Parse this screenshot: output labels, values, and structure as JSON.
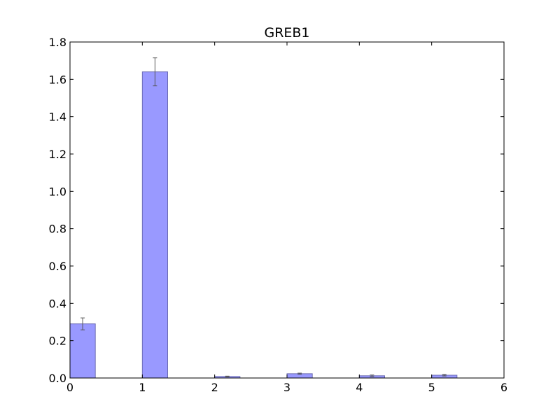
{
  "chart_data": {
    "type": "bar",
    "title": "GREB1",
    "xlabel": "",
    "ylabel": "",
    "x": [
      0,
      1,
      2,
      3,
      4,
      5
    ],
    "values": [
      0.29,
      1.64,
      0.008,
      0.023,
      0.012,
      0.015
    ],
    "errors": [
      0.032,
      0.075,
      0.002,
      0.003,
      0.004,
      0.004
    ],
    "bar_width": 0.35,
    "xlim": [
      0,
      6
    ],
    "ylim": [
      0,
      1.8
    ],
    "xticks": [
      0,
      1,
      2,
      3,
      4,
      5,
      6
    ],
    "xtick_labels": [
      "0",
      "1",
      "2",
      "3",
      "4",
      "5",
      "6"
    ],
    "yticks": [
      0.0,
      0.2,
      0.4,
      0.6,
      0.8,
      1.0,
      1.2,
      1.4,
      1.6,
      1.8
    ],
    "ytick_labels": [
      "0.0",
      "0.2",
      "0.4",
      "0.6",
      "0.8",
      "1.0",
      "1.2",
      "1.4",
      "1.6",
      "1.8"
    ],
    "grid": false,
    "legend": "none",
    "colors": {
      "bar_fill": "#9999ff",
      "bar_edge": "#6b6bb3",
      "error_bar": "#555555",
      "axis": "#000000"
    }
  }
}
